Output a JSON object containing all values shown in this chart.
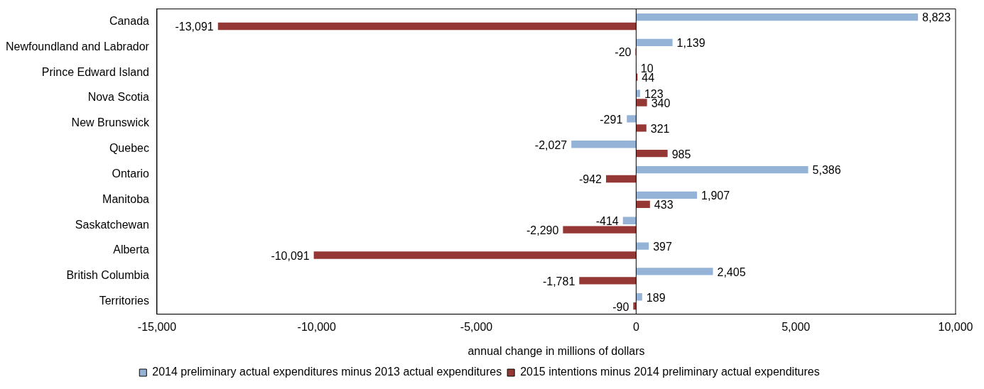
{
  "chart_data": {
    "type": "bar",
    "orientation": "horizontal",
    "xlabel": "annual change in millions of dollars",
    "categories": [
      "Canada",
      "Newfoundland and Labrador",
      "Prince Edward Island",
      "Nova Scotia",
      "New Brunswick",
      "Quebec",
      "Ontario",
      "Manitoba",
      "Saskatchewan",
      "Alberta",
      "British Columbia",
      "Territories"
    ],
    "series": [
      {
        "name": "2014 preliminary actual expenditures minus 2013 actual expenditures",
        "color": "#95b3d7",
        "values": [
          8823,
          1139,
          10,
          123,
          -291,
          -2027,
          5386,
          1907,
          -414,
          397,
          2405,
          189
        ],
        "value_labels": [
          "8,823",
          "1,139",
          "10",
          "123",
          "-291",
          "-2,027",
          "5,386",
          "1,907",
          "-414",
          "397",
          "2,405",
          "189"
        ]
      },
      {
        "name": "2015 intentions minus 2014 preliminary actual expenditures",
        "color": "#953735",
        "values": [
          -13091,
          -20,
          44,
          340,
          321,
          985,
          -942,
          433,
          -2290,
          -10091,
          -1781,
          -90
        ],
        "value_labels": [
          "-13,091",
          "-20",
          "44",
          "340",
          "321",
          "985",
          "-942",
          "433",
          "-2,290",
          "-10,091",
          "-1,781",
          "-90"
        ]
      }
    ],
    "xlim": [
      -15000,
      10000
    ],
    "xticks": [
      {
        "value": -15000,
        "label": "-15,000"
      },
      {
        "value": -10000,
        "label": "-10,000"
      },
      {
        "value": -5000,
        "label": "-5,000"
      },
      0,
      {
        "value": 5000,
        "label": "5,000"
      },
      {
        "value": 10000,
        "label": "10,000"
      }
    ],
    "ref_lines": [
      {
        "axis": "x",
        "value": 0,
        "color": "#000000"
      }
    ],
    "grid": false,
    "legend": "bottom"
  }
}
